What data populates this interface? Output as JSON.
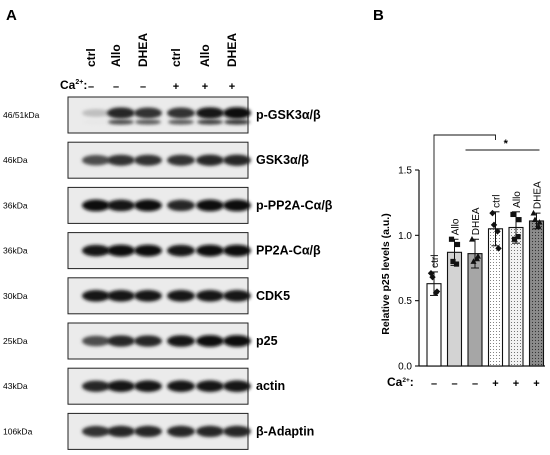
{
  "panel_a": {
    "letter": "A",
    "lanes": [
      "ctrl",
      "Allo",
      "DHEA",
      "ctrl",
      "Allo",
      "DHEA"
    ],
    "ca_label": "Ca",
    "ca_sup": "2+",
    "ca_colon": ":",
    "ca_signs": [
      "–",
      "–",
      "–",
      "+",
      "+",
      "+"
    ],
    "blots": [
      {
        "kda": "46/51kDa",
        "label": "p-GSK3α/β",
        "intensity": [
          0.25,
          0.85,
          0.8,
          0.8,
          0.9,
          0.95
        ],
        "double": true
      },
      {
        "kda": "46kDa",
        "label": "GSK3α/β",
        "intensity": [
          0.7,
          0.8,
          0.8,
          0.8,
          0.85,
          0.85
        ],
        "double": false
      },
      {
        "kda": "36kDa",
        "label": "p-PP2A-Cα/β",
        "intensity": [
          0.95,
          0.9,
          0.95,
          0.85,
          0.95,
          0.95
        ],
        "double": false
      },
      {
        "kda": "36kDa",
        "label": "PP2A-Cα/β",
        "intensity": [
          0.9,
          0.95,
          0.95,
          0.9,
          0.95,
          0.95
        ],
        "double": false
      },
      {
        "kda": "30kDa",
        "label": "CDK5",
        "intensity": [
          0.9,
          0.9,
          0.9,
          0.9,
          0.9,
          0.9
        ],
        "double": false
      },
      {
        "kda": "25kDa",
        "label": "p25",
        "intensity": [
          0.7,
          0.85,
          0.85,
          0.9,
          0.95,
          0.95
        ],
        "double": false
      },
      {
        "kda": "43kDa",
        "label": "actin",
        "intensity": [
          0.85,
          0.9,
          0.9,
          0.9,
          0.9,
          0.9
        ],
        "double": false
      },
      {
        "kda": "106kDa",
        "label": "β-Adaptin",
        "intensity": [
          0.8,
          0.85,
          0.85,
          0.85,
          0.85,
          0.85
        ],
        "double": false
      }
    ]
  },
  "chart_data": {
    "type": "bar",
    "letter": "B",
    "categories": [
      "ctrl",
      "Allo",
      "DHEA",
      "ctrl",
      "Allo",
      "DHEA"
    ],
    "values": [
      0.63,
      0.87,
      0.86,
      1.05,
      1.06,
      1.11
    ],
    "errors": [
      0.09,
      0.1,
      0.11,
      0.13,
      0.12,
      0.06
    ],
    "points": [
      [
        0.71,
        0.57,
        0.68,
        0.56
      ],
      [
        0.97,
        0.93,
        0.8,
        0.78
      ],
      [
        0.97,
        0.84,
        0.8,
        0.82
      ],
      [
        1.17,
        0.9,
        1.08,
        1.03
      ],
      [
        1.16,
        1.12,
        0.97,
        0.99
      ],
      [
        1.17,
        1.1,
        1.12,
        1.07
      ]
    ],
    "fills": [
      "#ffffff",
      "#d3d3d3",
      "#a6a6a6",
      "#ffffff",
      "#e6e6e6",
      "#8c8c8c"
    ],
    "patterns": [
      "none",
      "none",
      "none",
      "dots",
      "dots",
      "dots"
    ],
    "ylabel": "Relative p25 levels (a.u.)",
    "ylim": [
      0,
      1.5
    ],
    "yticks": [
      "0.0",
      "0.5",
      "1.0",
      "1.5"
    ],
    "ca_label": "Ca",
    "ca_sup": "2+",
    "ca_colon": ":",
    "ca_signs": [
      "–",
      "–",
      "–",
      "+",
      "+",
      "+"
    ],
    "significance": "*"
  }
}
